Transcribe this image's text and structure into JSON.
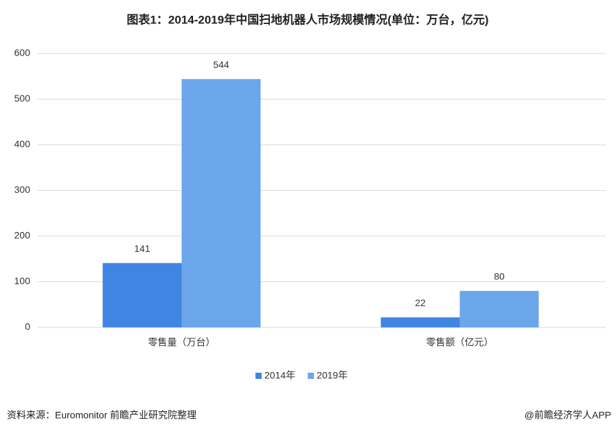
{
  "chart_data": {
    "type": "bar",
    "title": "图表1：2014-2019年中国扫地机器人市场规模情况(单位：万台，亿元)",
    "categories": [
      "零售量（万台）",
      "零售额（亿元）"
    ],
    "series": [
      {
        "name": "2014年",
        "color": "#3f85e2",
        "values": [
          141,
          22
        ]
      },
      {
        "name": "2019年",
        "color": "#6ca6ea",
        "values": [
          544,
          80
        ]
      }
    ],
    "ylim": [
      0,
      600
    ],
    "yticks": [
      0,
      100,
      200,
      300,
      400,
      500,
      600
    ],
    "grid": true,
    "legend": "bottom"
  },
  "footer": {
    "source": "资料来源：Euromonitor 前瞻产业研究院整理",
    "credit": "@前瞻经济学人APP"
  }
}
